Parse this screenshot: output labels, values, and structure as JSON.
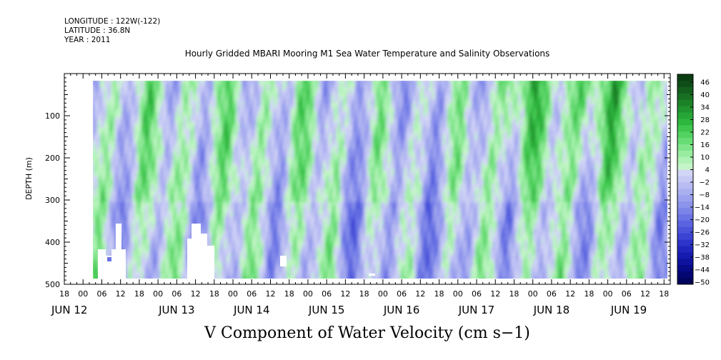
{
  "header": {
    "longitude": "LONGITUDE : 122W(-122)",
    "latitude": "LATITUDE : 36.8N",
    "year": "YEAR : 2011"
  },
  "chart_data": {
    "type": "heatmap",
    "title": "Hourly Gridded MBARI Mooring M1 Sea Water Temperature and Salinity Observations",
    "xlabel": "V Component of Water Velocity (cm s−1)",
    "ylabel": "DEPTH (m)",
    "x_range_hours": [
      "2011-06-11T18:00",
      "2011-06-19T20:00"
    ],
    "ylim": [
      500,
      0
    ],
    "y_ticks": [
      100,
      200,
      300,
      400,
      500
    ],
    "x_hour_ticks": [
      "18",
      "00",
      "06",
      "12",
      "18",
      "00",
      "06",
      "12",
      "18",
      "00",
      "06",
      "12",
      "18",
      "00",
      "06",
      "12",
      "18",
      "00",
      "06",
      "12",
      "18",
      "00",
      "06",
      "12",
      "18",
      "00",
      "06",
      "12",
      "18",
      "00",
      "06",
      "12",
      "18"
    ],
    "x_day_labels": [
      "JUN 12",
      "JUN 13",
      "JUN 14",
      "JUN 15",
      "JUN 16",
      "JUN 17",
      "JUN 18",
      "JUN 19"
    ],
    "colorbar": {
      "ticks": [
        46,
        40,
        34,
        28,
        22,
        16,
        10,
        4,
        -2,
        -8,
        -14,
        -20,
        -26,
        -32,
        -38,
        -44,
        -50
      ],
      "levels": [
        {
          "v": 46,
          "color": "#0b3d12"
        },
        {
          "v": 43,
          "color": "#0f4d18"
        },
        {
          "v": 40,
          "color": "#135e1d"
        },
        {
          "v": 37,
          "color": "#187022"
        },
        {
          "v": 34,
          "color": "#1c8228"
        },
        {
          "v": 31,
          "color": "#20942e"
        },
        {
          "v": 28,
          "color": "#25a636"
        },
        {
          "v": 25,
          "color": "#2db73f"
        },
        {
          "v": 22,
          "color": "#3ec64e"
        },
        {
          "v": 19,
          "color": "#52d260"
        },
        {
          "v": 16,
          "color": "#68dc74"
        },
        {
          "v": 13,
          "color": "#80e48a"
        },
        {
          "v": 10,
          "color": "#98eca0"
        },
        {
          "v": 7,
          "color": "#aef2b5"
        },
        {
          "v": 4,
          "color": "#c4f5c8"
        },
        {
          "v": 1,
          "color": "#d2d6f6"
        },
        {
          "v": -2,
          "color": "#c6c9f4"
        },
        {
          "v": -5,
          "color": "#b8bcf2"
        },
        {
          "v": -8,
          "color": "#aaaff0"
        },
        {
          "v": -11,
          "color": "#9ba1ee"
        },
        {
          "v": -14,
          "color": "#8c93eb"
        },
        {
          "v": -17,
          "color": "#7c84e8"
        },
        {
          "v": -20,
          "color": "#6b74e4"
        },
        {
          "v": -23,
          "color": "#5a63df"
        },
        {
          "v": -26,
          "color": "#4a53da"
        },
        {
          "v": -29,
          "color": "#3b43d3"
        },
        {
          "v": -32,
          "color": "#2d34c9"
        },
        {
          "v": -35,
          "color": "#2026bd"
        },
        {
          "v": -38,
          "color": "#161bae"
        },
        {
          "v": -41,
          "color": "#0e129c"
        },
        {
          "v": -44,
          "color": "#080b88"
        },
        {
          "v": -47,
          "color": "#040672"
        },
        {
          "v": -50,
          "color": "#02035c"
        }
      ]
    }
  }
}
